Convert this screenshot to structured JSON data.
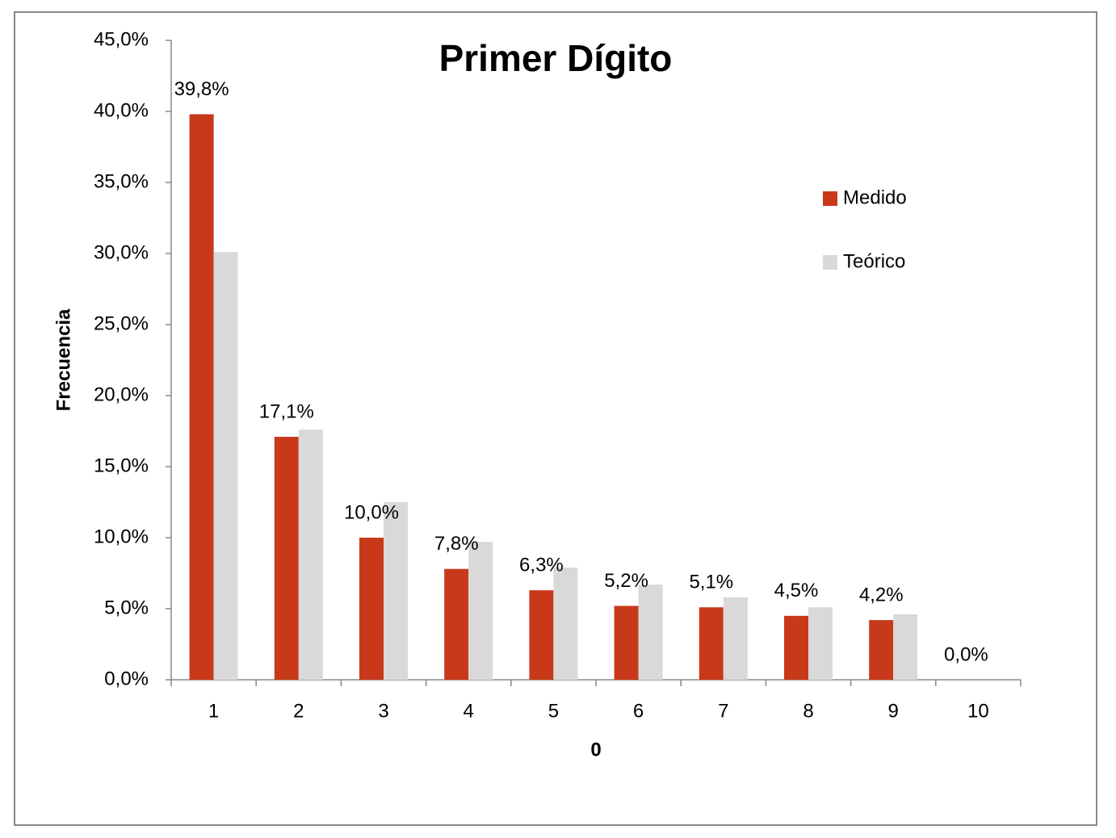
{
  "chart_data": {
    "type": "bar",
    "title": "Primer Dígito",
    "x_label": "0",
    "y_label": "Frecuencia",
    "categories": [
      "1",
      "2",
      "3",
      "4",
      "5",
      "6",
      "7",
      "8",
      "9",
      "10"
    ],
    "series": [
      {
        "name": "Medido",
        "color": "#c8391a",
        "values": [
          39.8,
          17.1,
          10.0,
          7.8,
          6.3,
          5.2,
          5.1,
          4.5,
          4.2,
          0.0
        ],
        "value_labels": [
          "39,8%",
          "17,1%",
          "10,0%",
          "7,8%",
          "6,3%",
          "5,2%",
          "5,1%",
          "4,5%",
          "4,2%",
          "0,0%"
        ]
      },
      {
        "name": "Teórico",
        "color": "#d9d9d9",
        "values": [
          30.1,
          17.6,
          12.5,
          9.7,
          7.9,
          6.7,
          5.8,
          5.1,
          4.6,
          null
        ]
      }
    ],
    "ylim": [
      0,
      45
    ],
    "yticks": [
      {
        "value": 0,
        "label": "0,0%"
      },
      {
        "value": 5,
        "label": "5,0%"
      },
      {
        "value": 10,
        "label": "10,0%"
      },
      {
        "value": 15,
        "label": "15,0%"
      },
      {
        "value": 20,
        "label": "20,0%"
      },
      {
        "value": 25,
        "label": "25,0%"
      },
      {
        "value": 30,
        "label": "30,0%"
      },
      {
        "value": 35,
        "label": "35,0%"
      },
      {
        "value": 40,
        "label": "40,0%"
      },
      {
        "value": 45,
        "label": "45,0%"
      }
    ],
    "legend": "right"
  }
}
